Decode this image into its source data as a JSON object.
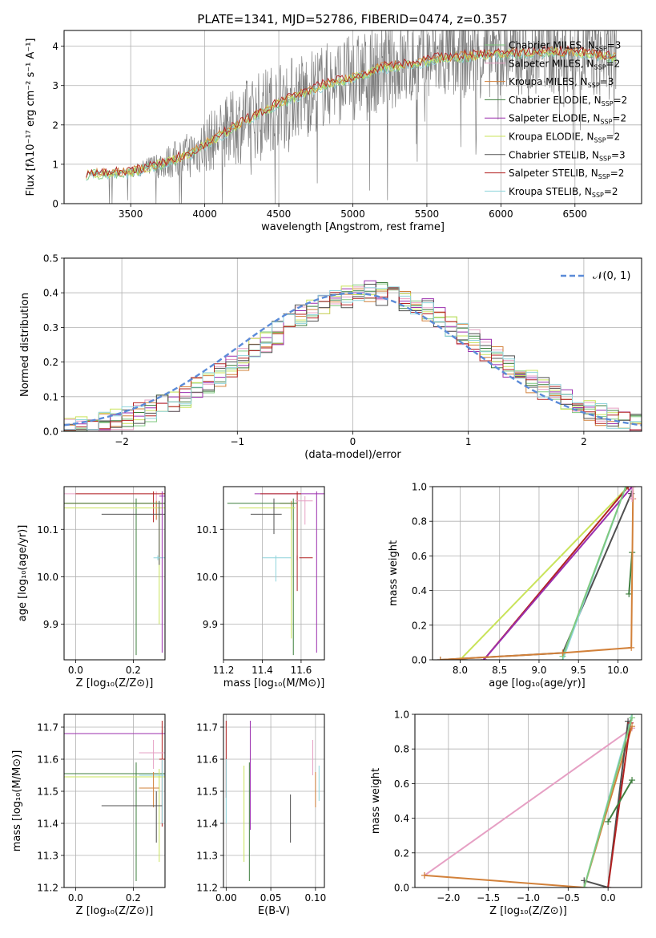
{
  "title": "PLATE=1341, MJD=52786, FIBERID=0474, z=0.357",
  "colors": {
    "chabrier_miles": "#7fc97f",
    "salpeter_miles": "#e6a0c4",
    "kroupa_miles": "#d2813a",
    "chabrier_elodie": "#3f7f3f",
    "salpeter_elodie": "#9b2fae",
    "kroupa_elodie": "#c9e35a",
    "chabrier_stelib": "#505050",
    "salpeter_stelib": "#b22222",
    "kroupa_stelib": "#8fd4dc",
    "data": "#7f7f7f",
    "normal": "#5b8bd8"
  },
  "legend_entries": [
    {
      "key": "chabrier_miles",
      "label": "Chabrier MILES, N",
      "sub": "SSP",
      "suffix": "=3"
    },
    {
      "key": "salpeter_miles",
      "label": "Salpeter MILES, N",
      "sub": "SSP",
      "suffix": "=2"
    },
    {
      "key": "kroupa_miles",
      "label": "Kroupa MILES, N",
      "sub": "SSP",
      "suffix": "=3"
    },
    {
      "key": "chabrier_elodie",
      "label": "Chabrier ELODIE, N",
      "sub": "SSP",
      "suffix": "=2"
    },
    {
      "key": "salpeter_elodie",
      "label": "Salpeter ELODIE, N",
      "sub": "SSP",
      "suffix": "=2"
    },
    {
      "key": "kroupa_elodie",
      "label": "Kroupa ELODIE, N",
      "sub": "SSP",
      "suffix": "=2"
    },
    {
      "key": "chabrier_stelib",
      "label": "Chabrier STELIB, N",
      "sub": "SSP",
      "suffix": "=3"
    },
    {
      "key": "salpeter_stelib",
      "label": "Salpeter STELIB, N",
      "sub": "SSP",
      "suffix": "=2"
    },
    {
      "key": "kroupa_stelib",
      "label": "Kroupa STELIB, N",
      "sub": "SSP",
      "suffix": "=2"
    }
  ],
  "chart_data": [
    {
      "id": "spectrum",
      "type": "line",
      "xlabel": "wavelength [Angstrom, rest frame]",
      "ylabel": "Flux [fλ10⁻¹⁷ erg cm⁻² s⁻¹ A⁻¹]",
      "xlim": [
        3050,
        6950
      ],
      "ylim": [
        0,
        4.4
      ],
      "xticks": [
        3500,
        4000,
        4500,
        5000,
        5500,
        6000,
        6500
      ],
      "yticks": [
        0,
        1,
        2,
        3,
        4
      ],
      "continuum": {
        "x": [
          3200,
          3500,
          3700,
          3900,
          4000,
          4200,
          4400,
          4600,
          4800,
          5000,
          5200,
          5400,
          5600,
          5800,
          6000,
          6200,
          6400,
          6600,
          6780
        ],
        "y": [
          0.75,
          0.8,
          1.0,
          1.25,
          1.5,
          1.95,
          2.35,
          2.7,
          3.0,
          3.2,
          3.45,
          3.55,
          3.7,
          3.75,
          3.8,
          3.85,
          3.85,
          3.8,
          3.7
        ]
      }
    },
    {
      "id": "residuals",
      "type": "histogram",
      "xlabel": "(data-model)/error",
      "ylabel": "Normed distribution",
      "xlim": [
        -2.5,
        2.5
      ],
      "ylim": [
        0,
        0.5
      ],
      "xticks": [
        -2,
        -1,
        0,
        1,
        2
      ],
      "yticks": [
        0.0,
        0.1,
        0.2,
        0.3,
        0.4,
        0.5
      ],
      "bin_width": 0.1,
      "base_profile": {
        "mean": 0.15,
        "sigma": 0.97
      },
      "legend_label": "𝒩(0, 1)"
    },
    {
      "id": "age_vs_Z",
      "type": "errorbar",
      "xlabel": "Z [log₁₀(Z/Z⊙)]",
      "ylabel": "age  [log₁₀(age/yr)]",
      "xlim": [
        -0.04,
        0.31
      ],
      "ylim": [
        9.825,
        10.19
      ],
      "xticks": [
        0.0,
        0.2
      ],
      "yticks": [
        9.9,
        10.0,
        10.1
      ],
      "points": [
        {
          "key": "salpeter_miles",
          "x": 0.28,
          "xl": -0.04,
          "xh": 0.31,
          "y": 10.175,
          "yl": 10.12,
          "yh": 10.18
        },
        {
          "key": "salpeter_stelib",
          "x": 0.27,
          "xl": 0.0,
          "xh": 0.31,
          "y": 10.175,
          "yl": 10.115,
          "yh": 10.18
        },
        {
          "key": "kroupa_miles",
          "x": 0.28,
          "xl": -0.04,
          "xh": 0.31,
          "y": 10.155,
          "yl": 10.12,
          "yh": 10.16
        },
        {
          "key": "chabrier_elodie",
          "x": 0.21,
          "xl": -0.04,
          "xh": 0.31,
          "y": 10.155,
          "yl": 9.835,
          "yh": 10.165
        },
        {
          "key": "kroupa_elodie",
          "x": 0.29,
          "xl": -0.04,
          "xh": 0.31,
          "y": 10.145,
          "yl": 9.9,
          "yh": 10.15
        },
        {
          "key": "chabrier_stelib",
          "x": 0.29,
          "xl": 0.09,
          "xh": 0.31,
          "y": 10.132,
          "yl": 10.025,
          "yh": 10.16
        },
        {
          "key": "kroupa_stelib",
          "x": 0.285,
          "xl": 0.27,
          "xh": 0.31,
          "y": 10.04,
          "yl": 10.035,
          "yh": 10.045
        },
        {
          "key": "salpeter_elodie",
          "x": 0.3,
          "xl": 0.29,
          "xh": 0.31,
          "y": 10.17,
          "yl": 9.84,
          "yh": 10.18
        }
      ]
    },
    {
      "id": "age_vs_mass",
      "type": "errorbar",
      "xlabel": "mass [log₁₀(M/M⊙)]",
      "ylabel": "",
      "xlim": [
        11.2,
        11.72
      ],
      "ylim": [
        9.825,
        10.19
      ],
      "xticks": [
        11.2,
        11.4,
        11.6
      ],
      "yticks": [
        9.9,
        10.0,
        10.1
      ],
      "points": [
        {
          "key": "salpeter_elodie",
          "x": 11.68,
          "xl": 11.36,
          "xh": 11.72,
          "y": 10.175,
          "yl": 9.84,
          "yh": 10.18
        },
        {
          "key": "salpeter_stelib",
          "x": 11.58,
          "xl": 11.39,
          "xh": 11.6,
          "y": 10.175,
          "yl": 9.97,
          "yh": 10.18
        },
        {
          "key": "salpeter_miles",
          "x": 11.62,
          "xl": 11.57,
          "xh": 11.66,
          "y": 10.16,
          "yl": 10.11,
          "yh": 10.17
        },
        {
          "key": "kroupa_miles",
          "x": 11.55,
          "xl": 11.49,
          "xh": 11.57,
          "y": 10.155,
          "yl": 10.12,
          "yh": 10.16
        },
        {
          "key": "chabrier_elodie",
          "x": 11.56,
          "xl": 11.22,
          "xh": 11.58,
          "y": 10.155,
          "yl": 9.835,
          "yh": 10.165
        },
        {
          "key": "kroupa_elodie",
          "x": 11.55,
          "xl": 11.28,
          "xh": 11.57,
          "y": 10.145,
          "yl": 9.87,
          "yh": 10.15
        },
        {
          "key": "chabrier_stelib",
          "x": 11.46,
          "xl": 11.34,
          "xh": 11.5,
          "y": 10.132,
          "yl": 10.09,
          "yh": 10.165
        },
        {
          "key": "kroupa_stelib",
          "x": 11.47,
          "xl": 11.4,
          "xh": 11.55,
          "y": 10.04,
          "yl": 9.99,
          "yh": 10.045
        },
        {
          "key": "salpeter_stelib",
          "x": 11.58,
          "xl": 11.59,
          "xh": 11.66,
          "y": 10.04,
          "yl": 10.035,
          "yh": 10.045
        }
      ]
    },
    {
      "id": "massweight_vs_age",
      "type": "line",
      "xlabel": "age  [log₁₀(age/yr)]",
      "ylabel": "mass weight",
      "xlim": [
        7.65,
        10.3
      ],
      "ylim": [
        0,
        1.0
      ],
      "xticks": [
        8.0,
        8.5,
        9.0,
        9.5,
        10.0
      ],
      "yticks": [
        0.0,
        0.2,
        0.4,
        0.6,
        0.8,
        1.0
      ],
      "series": [
        {
          "key": "kroupa_elodie",
          "x": [
            8.0,
            10.13
          ],
          "y": [
            0.0,
            1.0
          ]
        },
        {
          "key": "salpeter_stelib",
          "x": [
            8.3,
            10.13
          ],
          "y": [
            0.0,
            1.0
          ]
        },
        {
          "key": "salpeter_elodie",
          "x": [
            8.3,
            10.18
          ],
          "y": [
            0.0,
            1.0
          ]
        },
        {
          "key": "chabrier_stelib",
          "x": [
            7.75,
            9.3,
            10.17
          ],
          "y": [
            0.0,
            0.04,
            0.96
          ]
        },
        {
          "key": "kroupa_stelib",
          "x": [
            9.3,
            10.1
          ],
          "y": [
            0.0,
            1.0
          ]
        },
        {
          "key": "chabrier_miles",
          "x": [
            9.3,
            10.1
          ],
          "y": [
            0.02,
            1.0
          ]
        },
        {
          "key": "chabrier_elodie",
          "x": [
            10.14,
            10.18
          ],
          "y": [
            0.38,
            0.62
          ]
        },
        {
          "key": "kroupa_miles",
          "x": [
            7.75,
            9.3,
            10.17,
            10.19,
            10.19
          ],
          "y": [
            0.0,
            0.04,
            0.07,
            0.93,
            1.0
          ]
        },
        {
          "key": "salpeter_miles",
          "x": [
            10.18,
            10.19
          ],
          "y": [
            0.93,
            1.0
          ]
        }
      ]
    },
    {
      "id": "mass_vs_Z",
      "type": "errorbar",
      "xlabel": "Z [log₁₀(Z/Z⊙)]",
      "ylabel": "mass [log₁₀(M/M⊙)]",
      "xlim": [
        -0.04,
        0.31
      ],
      "ylim": [
        11.2,
        11.74
      ],
      "xticks": [
        0.0,
        0.2
      ],
      "yticks": [
        11.2,
        11.3,
        11.4,
        11.5,
        11.6,
        11.7
      ],
      "points": [
        {
          "key": "salpeter_elodie",
          "x": 0.3,
          "xl": -0.04,
          "xh": 0.31,
          "y": 11.68,
          "yl": 11.68,
          "yh": 11.69
        },
        {
          "key": "salpeter_stelib",
          "x": 0.3,
          "xl": 0.29,
          "xh": 0.31,
          "y": 11.6,
          "yl": 11.39,
          "yh": 11.72
        },
        {
          "key": "salpeter_miles",
          "x": 0.27,
          "xl": 0.22,
          "xh": 0.31,
          "y": 11.62,
          "yl": 11.57,
          "yh": 11.66
        },
        {
          "key": "chabrier_elodie",
          "x": 0.21,
          "xl": -0.04,
          "xh": 0.31,
          "y": 11.555,
          "yl": 11.22,
          "yh": 11.59
        },
        {
          "key": "kroupa_elodie",
          "x": 0.29,
          "xl": -0.04,
          "xh": 0.31,
          "y": 11.545,
          "yl": 11.28,
          "yh": 11.57
        },
        {
          "key": "kroupa_stelib",
          "x": 0.3,
          "xl": 0.22,
          "xh": 0.31,
          "y": 11.55,
          "yl": 11.4,
          "yh": 11.6
        },
        {
          "key": "kroupa_miles",
          "x": 0.27,
          "xl": 0.22,
          "xh": 0.29,
          "y": 11.51,
          "yl": 11.45,
          "yh": 11.56
        },
        {
          "key": "chabrier_stelib",
          "x": 0.28,
          "xl": 0.09,
          "xh": 0.3,
          "y": 11.455,
          "yl": 11.34,
          "yh": 11.5
        }
      ]
    },
    {
      "id": "mass_vs_ebv",
      "type": "errorbar",
      "xlabel": "E(B-V)",
      "ylabel": "",
      "xlim": [
        -0.003,
        0.11
      ],
      "ylim": [
        11.2,
        11.74
      ],
      "xticks": [
        0.0,
        0.05,
        0.1
      ],
      "yticks": [
        11.2,
        11.3,
        11.4,
        11.5,
        11.6,
        11.7
      ],
      "points": [
        {
          "key": "salpeter_stelib",
          "x": 0.0,
          "xl": 0.0,
          "xh": 0.0,
          "y": 11.6,
          "yl": 11.48,
          "yh": 11.72
        },
        {
          "key": "kroupa_stelib",
          "x": 0.0,
          "xl": 0.0,
          "xh": 0.0,
          "y": 11.5,
          "yl": 11.4,
          "yh": 11.6
        },
        {
          "key": "kroupa_elodie",
          "x": 0.02,
          "xl": 0.02,
          "xh": 0.02,
          "y": 11.45,
          "yl": 11.28,
          "yh": 11.58
        },
        {
          "key": "chabrier_elodie",
          "x": 0.026,
          "xl": 0.026,
          "xh": 0.026,
          "y": 11.42,
          "yl": 11.22,
          "yh": 11.59
        },
        {
          "key": "salpeter_elodie",
          "x": 0.027,
          "xl": 0.027,
          "xh": 0.027,
          "y": 11.55,
          "yl": 11.38,
          "yh": 11.72
        },
        {
          "key": "chabrier_stelib",
          "x": 0.072,
          "xl": 0.072,
          "xh": 0.072,
          "y": 11.41,
          "yl": 11.34,
          "yh": 11.49
        },
        {
          "key": "salpeter_miles",
          "x": 0.097,
          "xl": 0.097,
          "xh": 0.097,
          "y": 11.61,
          "yl": 11.55,
          "yh": 11.66
        },
        {
          "key": "kroupa_miles",
          "x": 0.1,
          "xl": 0.1,
          "xh": 0.1,
          "y": 11.5,
          "yl": 11.45,
          "yh": 11.56
        },
        {
          "key": "kroupa_stelib",
          "x": 0.104,
          "xl": 0.104,
          "xh": 0.104,
          "y": 11.52,
          "yl": 11.47,
          "yh": 11.58
        }
      ]
    },
    {
      "id": "massweight_vs_Z",
      "type": "line",
      "xlabel": "Z [log₁₀(Z/Z⊙)]",
      "ylabel": "mass weight",
      "xlim": [
        -2.42,
        0.42
      ],
      "ylim": [
        0,
        1.0
      ],
      "xticks": [
        -2.0,
        -1.5,
        -1.0,
        -0.5,
        0.0
      ],
      "yticks": [
        0.0,
        0.2,
        0.4,
        0.6,
        0.8,
        1.0
      ],
      "series": [
        {
          "key": "salpeter_miles",
          "x": [
            -2.3,
            0.3
          ],
          "y": [
            0.07,
            0.92
          ]
        },
        {
          "key": "kroupa_miles",
          "x": [
            -2.3,
            -0.3,
            0.3
          ],
          "y": [
            0.07,
            0.0,
            0.93
          ]
        },
        {
          "key": "kroupa_stelib",
          "x": [
            -0.3,
            0.3
          ],
          "y": [
            0.0,
            1.0
          ]
        },
        {
          "key": "chabrier_stelib",
          "x": [
            -0.3,
            0.0,
            0.25
          ],
          "y": [
            0.04,
            0.0,
            0.96
          ]
        },
        {
          "key": "salpeter_stelib",
          "x": [
            0.0,
            0.28
          ],
          "y": [
            0.0,
            0.95
          ]
        },
        {
          "key": "chabrier_elodie",
          "x": [
            0.0,
            0.3
          ],
          "y": [
            0.38,
            0.62
          ]
        },
        {
          "key": "chabrier_miles",
          "x": [
            -0.3,
            0.3
          ],
          "y": [
            0.0,
            0.98
          ]
        }
      ]
    }
  ]
}
